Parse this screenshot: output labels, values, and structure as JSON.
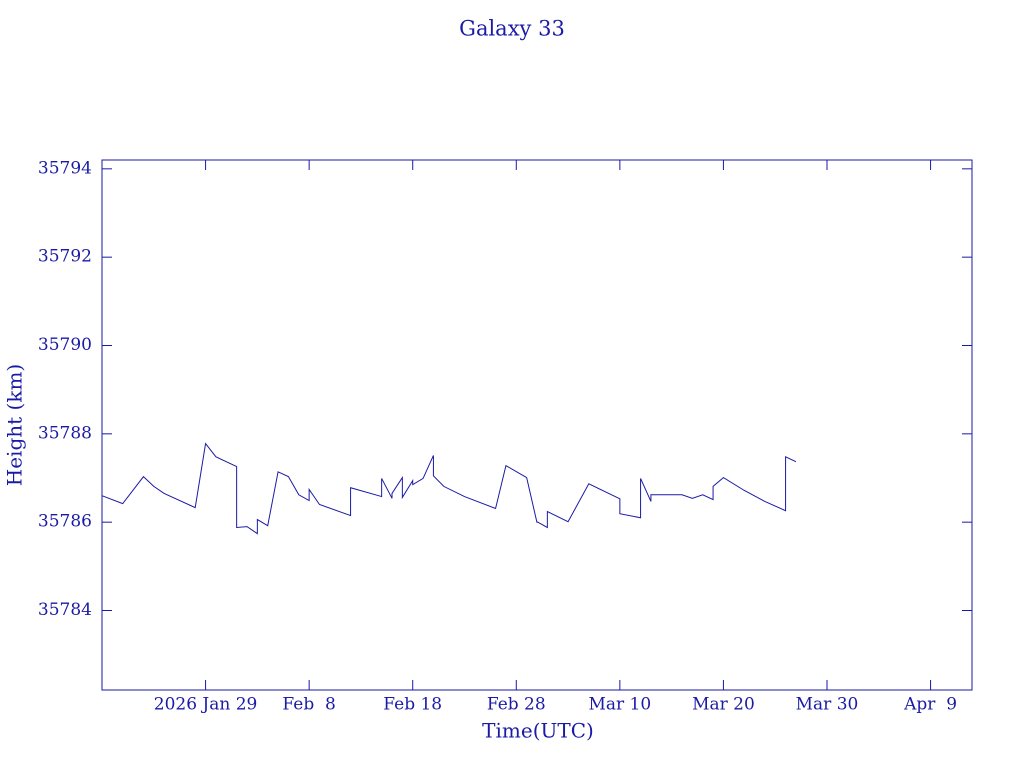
{
  "chart_data": {
    "type": "line",
    "title": "Galaxy 33",
    "x_label": "Time(UTC)",
    "y_label": "Height (km)",
    "color": "#1a1aa6",
    "x": [
      "2026-01-19",
      "2026-01-21",
      "2026-01-23",
      "2026-01-24",
      "2026-01-25",
      "2026-01-28",
      "2026-01-29",
      "2026-01-30",
      "2026-02-01",
      "2026-02-01",
      "2026-02-02",
      "2026-02-03",
      "2026-02-03",
      "2026-02-04",
      "2026-02-05",
      "2026-02-06",
      "2026-02-07",
      "2026-02-08",
      "2026-02-08",
      "2026-02-09",
      "2026-02-12",
      "2026-02-12",
      "2026-02-15",
      "2026-02-15",
      "2026-02-16",
      "2026-02-16",
      "2026-02-17",
      "2026-02-17",
      "2026-02-18",
      "2026-02-18",
      "2026-02-19",
      "2026-02-20",
      "2026-02-20",
      "2026-02-21",
      "2026-02-23",
      "2026-02-26",
      "2026-02-27",
      "2026-03-01",
      "2026-03-02",
      "2026-03-02",
      "2026-03-03",
      "2026-03-03",
      "2026-03-05",
      "2026-03-07",
      "2026-03-10",
      "2026-03-10",
      "2026-03-12",
      "2026-03-12",
      "2026-03-13",
      "2026-03-13",
      "2026-03-16",
      "2026-03-17",
      "2026-03-18",
      "2026-03-19",
      "2026-03-19",
      "2026-03-20",
      "2026-03-22",
      "2026-03-24",
      "2026-03-26",
      "2026-03-26",
      "2026-03-27"
    ],
    "values": [
      35786.6,
      35786.42,
      35787.03,
      35786.81,
      35786.65,
      35786.33,
      35787.78,
      35787.48,
      35787.26,
      35785.88,
      35785.9,
      35785.74,
      35786.06,
      35785.92,
      35787.14,
      35787.03,
      35786.62,
      35786.49,
      35786.74,
      35786.4,
      35786.15,
      35786.78,
      35786.58,
      35786.99,
      35786.54,
      35786.65,
      35787.01,
      35786.56,
      35786.94,
      35786.85,
      35786.99,
      35787.51,
      35787.05,
      35786.81,
      35786.58,
      35786.31,
      35787.28,
      35787.01,
      35785.99,
      35786.01,
      35785.88,
      35786.24,
      35786.01,
      35786.87,
      35786.53,
      35786.19,
      35786.1,
      35786.99,
      35786.47,
      35786.62,
      35786.62,
      35786.54,
      35786.62,
      35786.51,
      35786.81,
      35787.01,
      35786.72,
      35786.47,
      35786.26,
      35787.48,
      35787.37
    ],
    "xlim": [
      "2026-01-19",
      "2026-04-13"
    ],
    "xticks": [
      {
        "value": "2026-01-29",
        "label": "2026 Jan 29"
      },
      {
        "value": "2026-02-08",
        "label": "Feb  8"
      },
      {
        "value": "2026-02-18",
        "label": "Feb 18"
      },
      {
        "value": "2026-02-28",
        "label": "Feb 28"
      },
      {
        "value": "2026-03-10",
        "label": "Mar 10"
      },
      {
        "value": "2026-03-20",
        "label": "Mar 20"
      },
      {
        "value": "2026-03-30",
        "label": "Mar 30"
      },
      {
        "value": "2026-04-09",
        "label": "Apr  9"
      }
    ],
    "ylim": [
      35782.2,
      35794.2
    ],
    "yticks": [
      35784,
      35786,
      35788,
      35790,
      35792,
      35794
    ]
  }
}
